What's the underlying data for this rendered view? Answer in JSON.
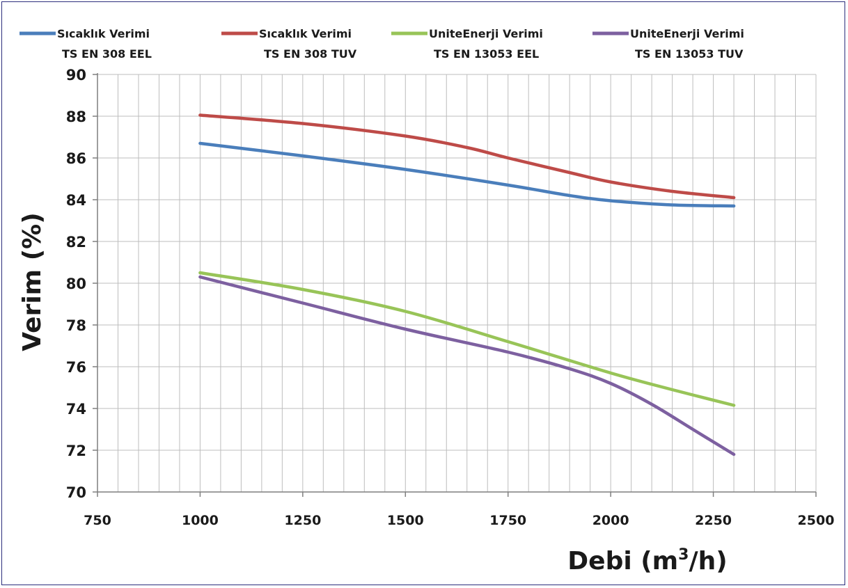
{
  "chart_data": {
    "type": "line",
    "title": "",
    "xlabel": "Debi (m",
    "xlabel_sup": "3",
    "xlabel_tail": "/h)",
    "ylabel": "Verim (%)",
    "xlim": [
      750,
      2500
    ],
    "ylim": [
      70,
      90
    ],
    "x_ticks": [
      "750",
      "1000",
      "1250",
      "1500",
      "1750",
      "2000",
      "2250",
      "2500"
    ],
    "y_ticks": [
      "70",
      "72",
      "74",
      "76",
      "78",
      "80",
      "82",
      "84",
      "86",
      "88",
      "90"
    ],
    "grid": true,
    "legend_position": "top",
    "series": [
      {
        "name_line1": "Sıcaklık Verimi",
        "name_line2": "TS EN 308 EEL",
        "color": "#4a7ebb",
        "points": [
          [
            1000,
            86.7
          ],
          [
            1250,
            86.1
          ],
          [
            1500,
            85.45
          ],
          [
            1750,
            84.7
          ],
          [
            1900,
            84.2
          ],
          [
            2000,
            83.95
          ],
          [
            2150,
            83.75
          ],
          [
            2300,
            83.7
          ]
        ]
      },
      {
        "name_line1": "Sıcaklık Verimi",
        "name_line2": "TS EN 308 TUV",
        "color": "#be4b48",
        "points": [
          [
            1000,
            88.05
          ],
          [
            1250,
            87.65
          ],
          [
            1500,
            87.05
          ],
          [
            1650,
            86.5
          ],
          [
            1750,
            86.0
          ],
          [
            1900,
            85.3
          ],
          [
            2000,
            84.85
          ],
          [
            2150,
            84.4
          ],
          [
            2300,
            84.1
          ]
        ]
      },
      {
        "name_line1": "UniteEnerji Verimi",
        "name_line2": "TS EN 13053 EEL",
        "color": "#98c458",
        "points": [
          [
            1000,
            80.5
          ],
          [
            1250,
            79.7
          ],
          [
            1500,
            78.65
          ],
          [
            1750,
            77.2
          ],
          [
            2000,
            75.7
          ],
          [
            2150,
            74.9
          ],
          [
            2300,
            74.15
          ]
        ]
      },
      {
        "name_line1": "UniteEnerji Verimi",
        "name_line2": "TS EN 13053 TUV",
        "color": "#7d60a0",
        "points": [
          [
            1000,
            80.3
          ],
          [
            1250,
            79.05
          ],
          [
            1500,
            77.8
          ],
          [
            1750,
            76.7
          ],
          [
            1900,
            75.9
          ],
          [
            2000,
            75.2
          ],
          [
            2100,
            74.2
          ],
          [
            2200,
            73.0
          ],
          [
            2300,
            71.8
          ]
        ]
      }
    ]
  }
}
